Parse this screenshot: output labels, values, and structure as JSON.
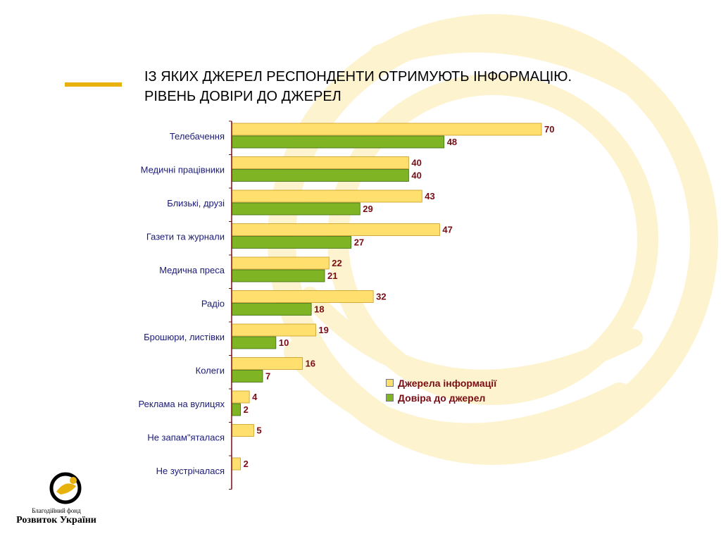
{
  "title": {
    "line1": "ІЗ ЯКИХ ДЖЕРЕЛ РЕСПОНДЕНТИ ОТРИМУЮТЬ ІНФОРМАЦІЮ.",
    "line2": "РІВЕНЬ ДОВІРИ ДО ДЖЕРЕЛ"
  },
  "logo": {
    "line1": "Благодійний фонд",
    "line2": "Розвиток України"
  },
  "colors": {
    "accent": "#e8b20e",
    "series1": "#ffdf6e",
    "series2": "#7fb524",
    "value_text": "#7a0c14",
    "category_text": "#1a1a7a"
  },
  "chart_data": {
    "type": "bar",
    "orientation": "horizontal",
    "categories": [
      "Телебачення",
      "Медичні працівники",
      "Близькі, друзі",
      "Газети та журнали",
      "Медична преса",
      "Радіо",
      "Брошюри, листівки",
      "Колеги",
      "Реклама на вулицях",
      "Не запам\"яталася",
      "Не зустрічалася"
    ],
    "series": [
      {
        "name": "Джерела інформації",
        "values": [
          70,
          40,
          43,
          47,
          22,
          32,
          19,
          16,
          4,
          5,
          2
        ]
      },
      {
        "name": "Довіра до джерел",
        "values": [
          48,
          40,
          29,
          27,
          21,
          18,
          10,
          7,
          2,
          null,
          null
        ]
      }
    ],
    "xlim": [
      0,
      70
    ],
    "legend_position": "bottom-right",
    "grid": false
  }
}
